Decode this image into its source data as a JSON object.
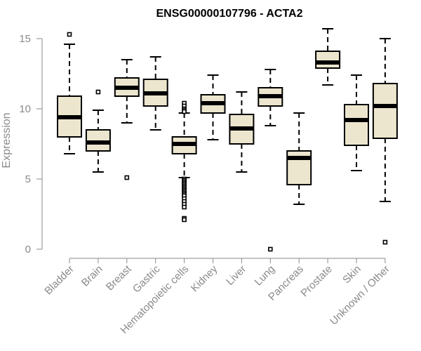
{
  "chart_data": {
    "type": "box",
    "title": "ENSG00000107796 - ACTA2",
    "ylabel": "Expression",
    "xlabel": "",
    "ylim": [
      0,
      15
    ],
    "yticks": [
      0,
      5,
      10,
      15
    ],
    "box_fill": "#ece6cf",
    "categories": [
      "Bladder",
      "Brain",
      "Breast",
      "Gastric",
      "Hematopoietic cells",
      "Kidney",
      "Liver",
      "Lung",
      "Pancreas",
      "Prostate",
      "Skin",
      "Unknown / Other"
    ],
    "boxes": [
      {
        "whisker_low": 6.8,
        "q1": 8.0,
        "median": 9.4,
        "q3": 10.9,
        "whisker_high": 14.6,
        "outliers": [
          15.3
        ]
      },
      {
        "whisker_low": 5.5,
        "q1": 7.0,
        "median": 7.6,
        "q3": 8.5,
        "whisker_high": 9.9,
        "outliers": [
          11.2
        ]
      },
      {
        "whisker_low": 9.0,
        "q1": 10.9,
        "median": 11.5,
        "q3": 12.2,
        "whisker_high": 13.5,
        "outliers": [
          5.1
        ]
      },
      {
        "whisker_low": 8.5,
        "q1": 10.2,
        "median": 11.1,
        "q3": 12.1,
        "whisker_high": 13.7,
        "outliers": []
      },
      {
        "whisker_low": 5.1,
        "q1": 6.8,
        "median": 7.5,
        "q3": 8.0,
        "whisker_high": 9.7,
        "outliers": [
          10.4,
          10.2,
          10.0,
          9.9,
          9.8,
          5.0,
          4.9,
          4.8,
          4.7,
          4.6,
          4.5,
          4.4,
          4.3,
          4.2,
          4.1,
          4.0,
          3.9,
          3.8,
          3.6,
          3.4,
          3.2,
          3.0,
          2.2,
          2.1
        ]
      },
      {
        "whisker_low": 7.8,
        "q1": 9.7,
        "median": 10.4,
        "q3": 11.0,
        "whisker_high": 12.4,
        "outliers": []
      },
      {
        "whisker_low": 5.5,
        "q1": 7.5,
        "median": 8.6,
        "q3": 9.6,
        "whisker_high": 11.2,
        "outliers": []
      },
      {
        "whisker_low": 8.8,
        "q1": 10.2,
        "median": 10.9,
        "q3": 11.5,
        "whisker_high": 12.8,
        "outliers": [
          0.0
        ]
      },
      {
        "whisker_low": 3.2,
        "q1": 4.6,
        "median": 6.5,
        "q3": 7.0,
        "whisker_high": 9.7,
        "outliers": []
      },
      {
        "whisker_low": 11.7,
        "q1": 12.9,
        "median": 13.3,
        "q3": 14.1,
        "whisker_high": 15.7,
        "outliers": []
      },
      {
        "whisker_low": 5.6,
        "q1": 7.4,
        "median": 9.2,
        "q3": 10.3,
        "whisker_high": 12.4,
        "outliers": []
      },
      {
        "whisker_low": 3.4,
        "q1": 7.9,
        "median": 10.2,
        "q3": 11.8,
        "whisker_high": 15.0,
        "outliers": [
          0.5
        ]
      }
    ]
  }
}
